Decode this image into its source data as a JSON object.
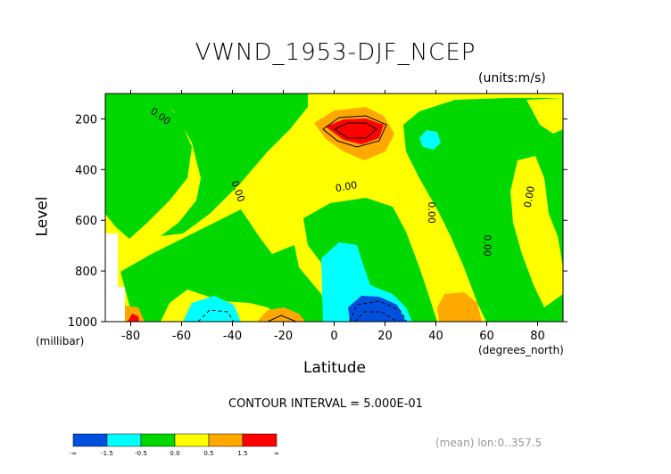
{
  "chart_data": {
    "type": "contour",
    "title": "VWND_1953-DJF_NCEP",
    "units_label": "(units:m/s)",
    "xlabel": "Latitude",
    "x_unit_label": "(degrees_north)",
    "ylabel": "Level",
    "y_unit_label": "(millibar)",
    "xlim": [
      -90,
      90
    ],
    "ylim": [
      1000,
      100
    ],
    "x_ticks": [
      -80,
      -60,
      -40,
      -20,
      0,
      20,
      40,
      60,
      80
    ],
    "x_tick_labels": [
      "-80",
      "-60",
      "-40",
      "-20",
      "0",
      "20",
      "40",
      "60",
      "80"
    ],
    "y_ticks": [
      200,
      400,
      600,
      800,
      1000
    ],
    "y_tick_labels": [
      "200",
      "400",
      "600",
      "800",
      "1000"
    ],
    "contour_interval_text": "CONTOUR INTERVAL = 5.000E-01",
    "contour_labels": [
      {
        "text": "0.00",
        "x": -69,
        "y": 200,
        "angle": 35
      },
      {
        "text": "0.00",
        "x": -39,
        "y": 490,
        "angle": 70
      },
      {
        "text": "0.00",
        "x": 5,
        "y": 480,
        "angle": -10
      },
      {
        "text": "0.00",
        "x": 37,
        "y": 570,
        "angle": 90
      },
      {
        "text": "0.00",
        "x": 59,
        "y": 700,
        "angle": 90
      },
      {
        "text": "0.00",
        "x": 78,
        "y": 510,
        "angle": -80
      }
    ],
    "colorbar": {
      "colors": [
        "#0050e0",
        "#00ffff",
        "#00d800",
        "#ffff00",
        "#ffa800",
        "#ff0000"
      ],
      "tick_labels": [
        "-∞",
        "-1.5",
        "-0.5",
        "0.0",
        "0.5",
        "1.5",
        "∞"
      ]
    },
    "footnote": "(mean) lon:0..357.5"
  }
}
